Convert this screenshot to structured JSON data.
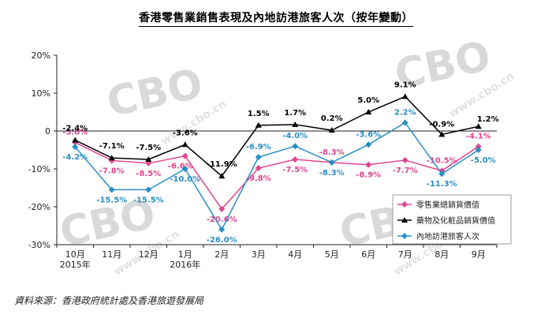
{
  "chart_data": {
    "type": "line",
    "title": "香港零售業銷售表現及內地訪港旅客人次（按年變動）",
    "categories": [
      "10月\n2015年",
      "11月",
      "12月",
      "1月\n2016年",
      "2月",
      "3月",
      "4月",
      "5月",
      "6月",
      "7月",
      "8月",
      "9月"
    ],
    "ylim": [
      -30,
      20
    ],
    "yticks": [
      "20%",
      "10%",
      "0",
      "-10%",
      "-20%",
      "-30%"
    ],
    "ytick_values": [
      20,
      10,
      0,
      -10,
      -20,
      -30
    ],
    "grid": false,
    "legend_position": "bottom-right",
    "series": [
      {
        "name": "零售業總銷貨價值",
        "color": "#e0458f",
        "marker": "diamond",
        "values": [
          -3.0,
          -7.8,
          -8.5,
          -6.6,
          -20.6,
          -9.8,
          -7.5,
          -8.3,
          -8.9,
          -7.7,
          -10.5,
          -4.1
        ],
        "labels": [
          "-3.0%",
          "-7.8%",
          "-8.5%",
          "-6.6%",
          "-20.6%",
          "-9.8%",
          "-7.5%",
          "-8.3%",
          "-8.9%",
          "-7.7%",
          "-10.5%",
          "-4.1%"
        ]
      },
      {
        "name": "藥物及化粧品銷貨價值",
        "color": "#000000",
        "marker": "triangle",
        "values": [
          -2.4,
          -7.1,
          -7.5,
          -3.6,
          -11.9,
          1.5,
          1.7,
          0.2,
          5.0,
          9.1,
          -0.9,
          1.2
        ],
        "labels": [
          "-2.4%",
          "-7.1%",
          "-7.5%",
          "-3.6%",
          "-11.9%",
          "1.5%",
          "1.7%",
          "0.2%",
          "5.0%",
          "9.1%",
          "-0.9%",
          "1.2%"
        ]
      },
      {
        "name": "內地訪港旅客人次",
        "color": "#2a8fc4",
        "marker": "diamond",
        "values": [
          -4.2,
          -15.5,
          -15.5,
          -10.0,
          -26.0,
          -6.9,
          -4.0,
          -8.3,
          -3.6,
          2.2,
          -11.3,
          -5.0
        ],
        "labels": [
          "-4.2%",
          "-15.5%",
          "-15.5%",
          "-10.0%",
          "-26.0%",
          "-6.9%",
          "-4.0%",
          "-8.3%",
          "-3.6%",
          "2.2%",
          "-11.3%",
          "-5.0%"
        ]
      }
    ]
  },
  "source_note": "資料來源：香港政府統計處及香港旅遊發展局",
  "watermark": {
    "logo": "CBO",
    "site": "www.cbo.cn"
  }
}
